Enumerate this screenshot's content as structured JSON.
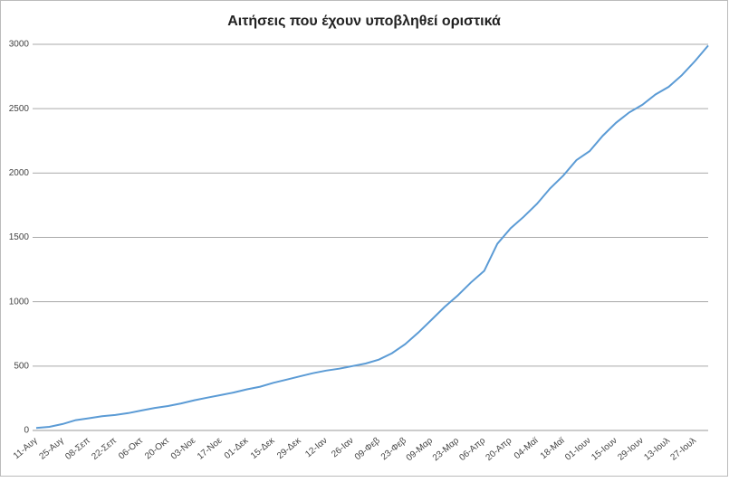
{
  "chart_data": {
    "type": "line",
    "title": "Αιτήσεις που έχουν υποβληθεί οριστικά",
    "categories": [
      "11-Αυγ",
      null,
      "25-Αυγ",
      null,
      "08-Σεπ",
      null,
      "22-Σεπ",
      null,
      "06-Οκτ",
      null,
      "20-Οκτ",
      null,
      "03-Νοε",
      null,
      "17-Νοε",
      null,
      "01-Δεκ",
      null,
      "15-Δεκ",
      null,
      "29-Δεκ",
      null,
      "12-Ιαν",
      null,
      "26-Ιαν",
      null,
      "09-Φεβ",
      null,
      "23-Φεβ",
      null,
      "09-Μαρ",
      null,
      "23-Μαρ",
      null,
      "06-Απρ",
      null,
      "20-Απρ",
      null,
      "04-Μαϊ",
      null,
      "18-Μαϊ",
      null,
      "01-Ιουν",
      null,
      "15-Ιουν",
      null,
      "29-Ιουν",
      null,
      "13-Ιουλ",
      null,
      "27-Ιουλ",
      null
    ],
    "values": [
      20,
      28,
      50,
      80,
      95,
      110,
      120,
      135,
      155,
      175,
      190,
      210,
      235,
      255,
      275,
      295,
      320,
      340,
      370,
      395,
      420,
      445,
      465,
      480,
      500,
      520,
      550,
      600,
      670,
      760,
      860,
      960,
      1050,
      1150,
      1240,
      1450,
      1570,
      1660,
      1760,
      1880,
      1980,
      2100,
      2170,
      2290,
      2390,
      2470,
      2530,
      2610,
      2670,
      2760,
      2870,
      2990
    ],
    "color": "#5b9bd5",
    "ylim": [
      0,
      3000
    ],
    "yticks": [
      0,
      500,
      1000,
      1500,
      2000,
      2500,
      3000
    ],
    "grid": true
  }
}
